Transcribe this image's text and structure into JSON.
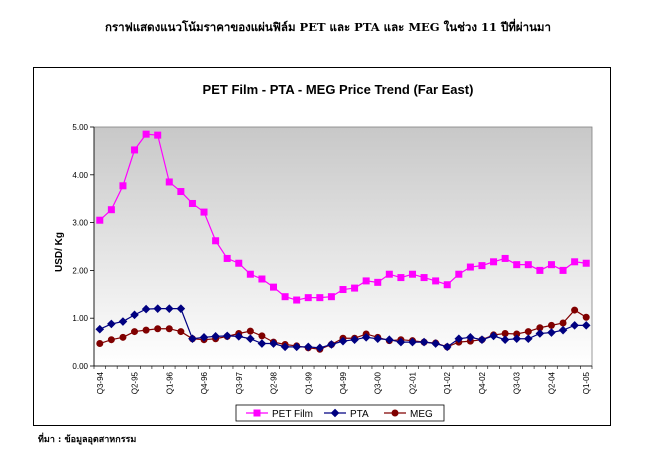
{
  "page_heading": "กราฟแสดงแนวโน้มราคาของแผ่นฟิล์ม PET และ PTA และ MEG ในช่วง 11 ปีที่ผ่านมา",
  "source_note": "ที่มา : ข้อมูลอุตสาหกรรม",
  "colors": {
    "pet_film": "#ff00ff",
    "pta": "#000080",
    "meg": "#800000",
    "plot_background_top": "#c8c8c8",
    "plot_background_bottom": "#ffffff"
  },
  "chart_data": {
    "type": "line",
    "title": "PET Film - PTA - MEG Price Trend (Far East)",
    "xlabel": "",
    "ylabel": "USD/ Kg",
    "ylim": [
      0,
      5
    ],
    "yticks": [
      "0.00",
      "1.00",
      "2.00",
      "3.00",
      "4.00",
      "5.00"
    ],
    "grid": false,
    "legend_position": "bottom",
    "x_tick_labels": [
      "Q3-94",
      "Q2-95",
      "Q1-96",
      "Q4-96",
      "Q3-97",
      "Q2-98",
      "Q1-99",
      "Q4-99",
      "Q3-00",
      "Q2-01",
      "Q1-02",
      "Q4-02",
      "Q3-03",
      "Q2-04",
      "Q1-05"
    ],
    "x": [
      "Q3-94",
      "Q4-94",
      "Q1-95",
      "Q2-95",
      "Q3-95",
      "Q4-95",
      "Q1-96",
      "Q2-96",
      "Q3-96",
      "Q4-96",
      "Q1-97",
      "Q2-97",
      "Q3-97",
      "Q4-97",
      "Q1-98",
      "Q2-98",
      "Q3-98",
      "Q4-98",
      "Q1-99",
      "Q2-99",
      "Q3-99",
      "Q4-99",
      "Q1-00",
      "Q2-00",
      "Q3-00",
      "Q4-00",
      "Q1-01",
      "Q2-01",
      "Q3-01",
      "Q4-01",
      "Q1-02",
      "Q2-02",
      "Q3-02",
      "Q4-02",
      "Q1-03",
      "Q2-03",
      "Q3-03",
      "Q4-03",
      "Q1-04",
      "Q2-04",
      "Q3-04",
      "Q4-04",
      "Q1-05"
    ],
    "series": [
      {
        "name": "PET Film",
        "marker": "square",
        "values": [
          3.05,
          3.27,
          3.77,
          4.52,
          4.85,
          4.83,
          3.85,
          3.65,
          3.4,
          3.22,
          2.62,
          2.25,
          2.15,
          1.92,
          1.82,
          1.65,
          1.45,
          1.38,
          1.43,
          1.43,
          1.45,
          1.6,
          1.63,
          1.78,
          1.75,
          1.92,
          1.85,
          1.92,
          1.85,
          1.78,
          1.7,
          1.92,
          2.07,
          2.1,
          2.18,
          2.25,
          2.12,
          2.12,
          2.0,
          2.12,
          2.0,
          2.18,
          2.15
        ]
      },
      {
        "name": "PTA",
        "marker": "diamond",
        "values": [
          0.77,
          0.88,
          0.93,
          1.07,
          1.19,
          1.2,
          1.2,
          1.2,
          0.57,
          0.6,
          0.62,
          0.63,
          0.62,
          0.57,
          0.47,
          0.47,
          0.4,
          0.4,
          0.4,
          0.38,
          0.45,
          0.52,
          0.55,
          0.6,
          0.57,
          0.55,
          0.5,
          0.5,
          0.5,
          0.47,
          0.4,
          0.57,
          0.6,
          0.55,
          0.63,
          0.55,
          0.57,
          0.57,
          0.68,
          0.7,
          0.75,
          0.85,
          0.85
        ]
      },
      {
        "name": "MEG",
        "marker": "circle",
        "values": [
          0.47,
          0.55,
          0.6,
          0.72,
          0.75,
          0.78,
          0.78,
          0.72,
          0.57,
          0.55,
          0.57,
          0.62,
          0.68,
          0.73,
          0.63,
          0.5,
          0.45,
          0.42,
          0.38,
          0.35,
          0.45,
          0.58,
          0.58,
          0.67,
          0.6,
          0.53,
          0.55,
          0.53,
          0.5,
          0.48,
          0.4,
          0.5,
          0.52,
          0.55,
          0.65,
          0.68,
          0.67,
          0.72,
          0.8,
          0.85,
          0.9,
          1.17,
          1.02
        ]
      }
    ]
  }
}
